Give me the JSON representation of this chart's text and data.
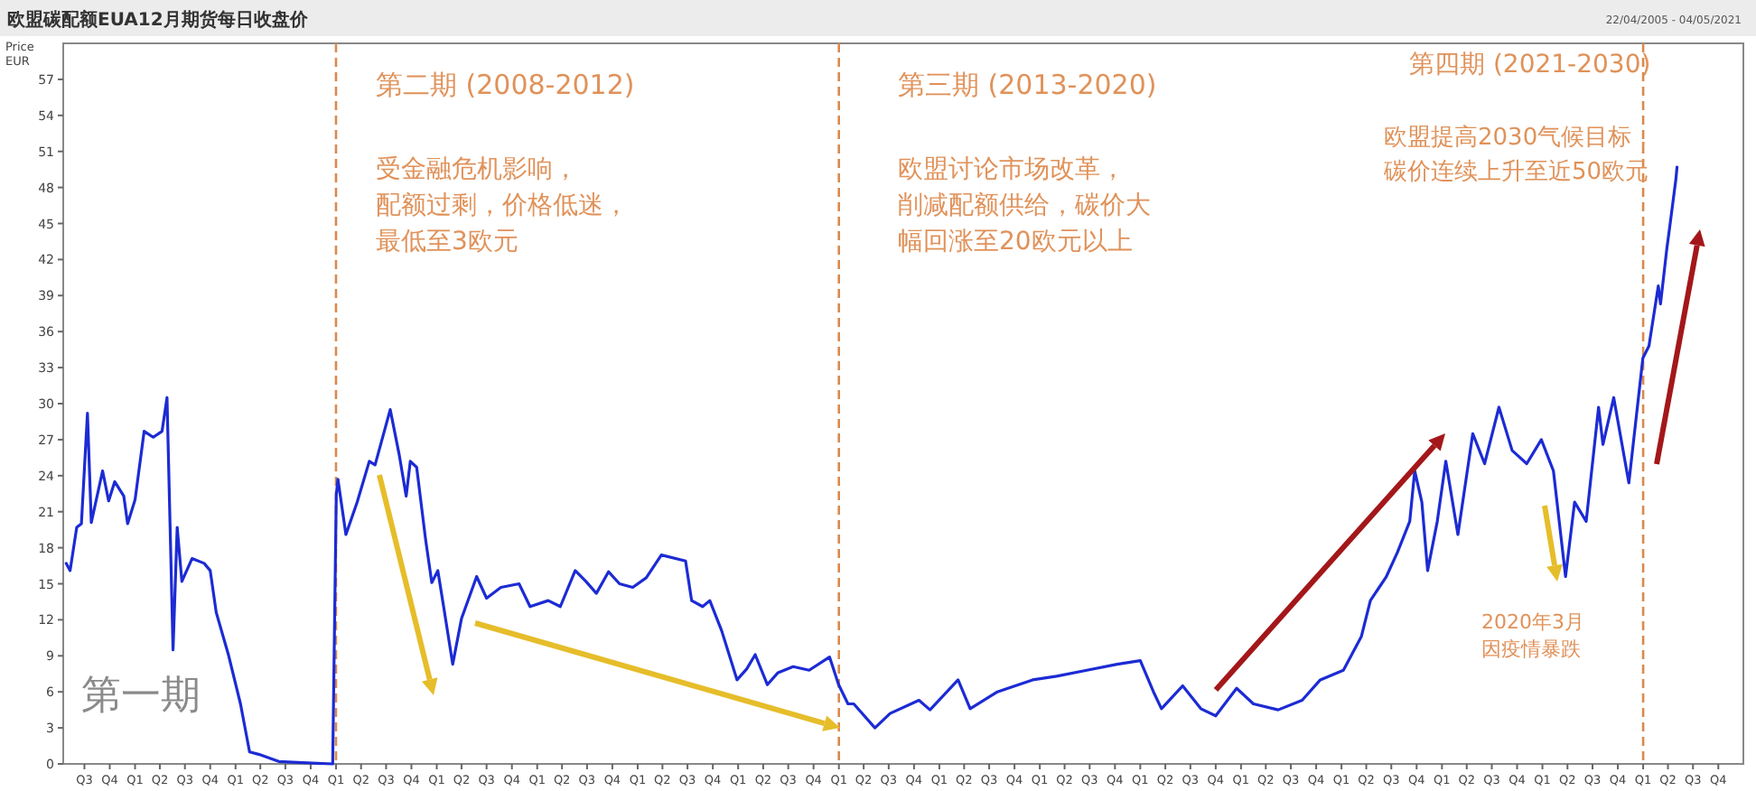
{
  "chart_data": {
    "type": "line",
    "title": "欧盟碳配额EUA12月期货每日收盘价",
    "subtitle": "22/04/2005 - 04/05/2021",
    "ylabel": "Price EUR",
    "annotations": [
      "第一期",
      "第二期 (2008-2012)",
      "受金融危机影响，",
      "配额过剩，价格低迷，",
      "最低至3欧元",
      "第三期 (2013-2020)",
      "欧盟讨论市场改革，",
      "削减配额供给，碳价大",
      "幅回涨至20欧元以上",
      "第四期 (2021-2030)",
      "欧盟提高2030气候目标，",
      "碳价连续上升至近50欧元",
      "2020年3月",
      "因疫情暴跌"
    ],
    "series": [
      {
        "color": "#1c2bd4",
        "x": [
          "2005-04-26",
          "2005-05-10",
          "2005-06-03",
          "2005-06-20",
          "2005-07-12",
          "2005-07-26",
          "2005-09-05",
          "2005-09-27",
          "2005-10-19",
          "2005-11-21",
          "2005-12-05",
          "2006-01-01",
          "2006-02-03",
          "2006-03-08",
          "2006-04-09",
          "2006-04-27",
          "2006-05-08",
          "2006-05-19",
          "2006-06-03",
          "2006-06-20",
          "2006-07-27",
          "2006-09-09",
          "2006-10-01",
          "2006-10-23",
          "2006-12-06",
          "2007-01-19",
          "2007-02-21",
          "2007-03-26",
          "2007-06-07",
          "2007-09-02",
          "2007-12-20",
          "2008-01-02",
          "2008-01-08",
          "2008-02-06",
          "2008-03-18",
          "2008-05-01",
          "2008-05-22",
          "2008-07-16",
          "2008-08-18",
          "2008-09-12",
          "2008-09-27",
          "2008-10-20",
          "2008-11-22",
          "2008-12-14",
          "2009-01-05",
          "2009-01-26",
          "2009-02-28",
          "2009-04-01",
          "2009-05-26",
          "2009-07-01",
          "2009-08-22",
          "2009-10-27",
          "2009-12-06",
          "2010-02-10",
          "2010-03-26",
          "2010-05-19",
          "2010-06-27",
          "2010-08-04",
          "2010-09-17",
          "2010-10-27",
          "2010-12-14",
          "2011-02-01",
          "2011-03-28",
          "2011-06-24",
          "2011-07-16",
          "2011-08-25",
          "2011-09-20",
          "2011-11-02",
          "2011-12-28",
          "2012-02-01",
          "2012-03-03",
          "2012-04-16",
          "2012-05-25",
          "2012-07-19",
          "2012-09-15",
          "2012-11-28",
          "2012-12-31",
          "2013-02-03",
          "2013-02-24",
          "2013-05-12",
          "2013-07-06",
          "2013-10-19",
          "2013-11-28",
          "2014-03-10",
          "2014-04-23",
          "2014-07-31",
          "2014-12-06",
          "2015-03-03",
          "2015-06-21",
          "2015-10-09",
          "2016-01-01",
          "2016-02-18",
          "2016-03-18",
          "2016-06-03",
          "2016-08-08",
          "2016-10-01",
          "2016-12-16",
          "2017-02-15",
          "2017-05-16",
          "2017-08-11",
          "2017-10-16",
          "2018-01-08",
          "2018-03-14",
          "2018-04-16",
          "2018-06-13",
          "2018-07-23",
          "2018-09-06",
          "2018-09-24",
          "2018-10-20",
          "2018-11-10",
          "2018-12-15",
          "2019-01-15",
          "2019-02-28",
          "2019-04-23",
          "2019-06-05",
          "2019-07-27",
          "2019-09-13",
          "2019-11-05",
          "2019-12-28",
          "2020-02-10",
          "2020-03-25",
          "2020-04-27",
          "2020-06-08",
          "2020-07-23",
          "2020-08-08",
          "2020-09-16",
          "2020-11-10",
          "2020-12-31",
          "2021-01-22",
          "2021-02-25",
          "2021-03-05",
          "2021-03-28",
          "2021-04-08",
          "2021-04-30",
          "2021-05-04"
        ],
        "values": [
          16.7,
          16.1,
          19.7,
          20,
          29.2,
          20.1,
          24.4,
          21.9,
          23.5,
          22.3,
          20,
          22,
          27.7,
          27.2,
          27.7,
          30.5,
          20,
          9.5,
          19.7,
          15.2,
          17.1,
          16.7,
          16.1,
          12.6,
          9.1,
          5,
          1,
          0.8,
          0.2,
          0.1,
          0,
          22.4,
          23.7,
          19.1,
          21.8,
          25.2,
          24.9,
          29.5,
          25.7,
          22.3,
          25.2,
          24.7,
          18.6,
          15.1,
          16.1,
          13.1,
          8.3,
          12.1,
          15.6,
          13.8,
          14.7,
          15,
          13.1,
          13.6,
          13.1,
          16.1,
          15.2,
          14.2,
          16,
          15,
          14.7,
          15.5,
          17.4,
          16.9,
          13.6,
          13.1,
          13.6,
          11.1,
          7,
          7.9,
          9.1,
          6.6,
          7.6,
          8.1,
          7.8,
          8.9,
          6.6,
          5,
          5,
          3,
          4.2,
          5.3,
          4.5,
          7,
          4.6,
          6,
          7,
          7.3,
          7.8,
          8.3,
          8.6,
          6,
          4.6,
          6.5,
          4.6,
          4,
          6.3,
          5,
          4.5,
          5.3,
          7,
          7.8,
          10.6,
          13.6,
          15.6,
          17.6,
          20.2,
          24.4,
          21.8,
          16.1,
          20.2,
          25.2,
          19.1,
          27.5,
          25,
          29.7,
          26.1,
          25,
          27,
          24.4,
          15.6,
          21.8,
          20.2,
          29.7,
          26.6,
          30.5,
          23.4,
          33.8,
          34.8,
          39.8,
          38.3,
          42.9,
          44.8,
          48.7,
          49.7
        ]
      }
    ],
    "xlim": [
      "2005-04-15",
      "2021-12-31"
    ],
    "ylim": [
      0,
      60
    ],
    "yticks": [
      0,
      3,
      6,
      9,
      12,
      15,
      18,
      21,
      24,
      27,
      30,
      33,
      36,
      39,
      42,
      45,
      48,
      51,
      54,
      57
    ],
    "xticks": [
      {
        "value": "2005-07-01",
        "label": "Q3"
      },
      {
        "value": "2005-10-01",
        "label": "Q4"
      },
      {
        "value": "2006-01-01",
        "label": "Q1"
      },
      {
        "value": "2006-04-01",
        "label": "Q2"
      },
      {
        "value": "2006-07-01",
        "label": "Q3"
      },
      {
        "value": "2006-10-01",
        "label": "Q4"
      },
      {
        "value": "2007-01-01",
        "label": "Q1"
      },
      {
        "value": "2007-04-01",
        "label": "Q2"
      },
      {
        "value": "2007-07-01",
        "label": "Q3"
      },
      {
        "value": "2007-10-01",
        "label": "Q4"
      },
      {
        "value": "2008-01-01",
        "label": "Q1"
      },
      {
        "value": "2008-04-01",
        "label": "Q2"
      },
      {
        "value": "2008-07-01",
        "label": "Q3"
      },
      {
        "value": "2008-10-01",
        "label": "Q4"
      },
      {
        "value": "2009-01-01",
        "label": "Q1"
      },
      {
        "value": "2009-04-01",
        "label": "Q2"
      },
      {
        "value": "2009-07-01",
        "label": "Q3"
      },
      {
        "value": "2009-10-01",
        "label": "Q4"
      },
      {
        "value": "2010-01-01",
        "label": "Q1"
      },
      {
        "value": "2010-04-01",
        "label": "Q2"
      },
      {
        "value": "2010-07-01",
        "label": "Q3"
      },
      {
        "value": "2010-10-01",
        "label": "Q4"
      },
      {
        "value": "2011-01-01",
        "label": "Q1"
      },
      {
        "value": "2011-04-01",
        "label": "Q2"
      },
      {
        "value": "2011-07-01",
        "label": "Q3"
      },
      {
        "value": "2011-10-01",
        "label": "Q4"
      },
      {
        "value": "2012-01-01",
        "label": "Q1"
      },
      {
        "value": "2012-04-01",
        "label": "Q2"
      },
      {
        "value": "2012-07-01",
        "label": "Q3"
      },
      {
        "value": "2012-10-01",
        "label": "Q4"
      },
      {
        "value": "2013-01-01",
        "label": "Q1"
      },
      {
        "value": "2013-04-01",
        "label": "Q2"
      },
      {
        "value": "2013-07-01",
        "label": "Q3"
      },
      {
        "value": "2013-10-01",
        "label": "Q4"
      },
      {
        "value": "2014-01-01",
        "label": "Q1"
      },
      {
        "value": "2014-04-01",
        "label": "Q2"
      },
      {
        "value": "2014-07-01",
        "label": "Q3"
      },
      {
        "value": "2014-10-01",
        "label": "Q4"
      },
      {
        "value": "2015-01-01",
        "label": "Q1"
      },
      {
        "value": "2015-04-01",
        "label": "Q2"
      },
      {
        "value": "2015-07-01",
        "label": "Q3"
      },
      {
        "value": "2015-10-01",
        "label": "Q4"
      },
      {
        "value": "2016-01-01",
        "label": "Q1"
      },
      {
        "value": "2016-04-01",
        "label": "Q2"
      },
      {
        "value": "2016-07-01",
        "label": "Q3"
      },
      {
        "value": "2016-10-01",
        "label": "Q4"
      },
      {
        "value": "2017-01-01",
        "label": "Q1"
      },
      {
        "value": "2017-04-01",
        "label": "Q2"
      },
      {
        "value": "2017-07-01",
        "label": "Q3"
      },
      {
        "value": "2017-10-01",
        "label": "Q4"
      },
      {
        "value": "2018-01-01",
        "label": "Q1"
      },
      {
        "value": "2018-04-01",
        "label": "Q2"
      },
      {
        "value": "2018-07-01",
        "label": "Q3"
      },
      {
        "value": "2018-10-01",
        "label": "Q4"
      },
      {
        "value": "2019-01-01",
        "label": "Q1"
      },
      {
        "value": "2019-04-01",
        "label": "Q2"
      },
      {
        "value": "2019-07-01",
        "label": "Q3"
      },
      {
        "value": "2019-10-01",
        "label": "Q4"
      },
      {
        "value": "2020-01-01",
        "label": "Q1"
      },
      {
        "value": "2020-04-01",
        "label": "Q2"
      },
      {
        "value": "2020-07-01",
        "label": "Q3"
      },
      {
        "value": "2020-10-01",
        "label": "Q4"
      },
      {
        "value": "2021-01-01",
        "label": "Q1"
      },
      {
        "value": "2021-04-01",
        "label": "Q2"
      },
      {
        "value": "2021-07-01",
        "label": "Q3"
      },
      {
        "value": "2021-10-01",
        "label": "Q4"
      }
    ],
    "ref_lines": [
      {
        "axis": "x",
        "value": "2008-01-01",
        "color": "#d98a4e",
        "line_style": "dashed"
      },
      {
        "axis": "x",
        "value": "2013-01-01",
        "color": "#d98a4e",
        "line_style": "dashed"
      },
      {
        "axis": "x",
        "value": "2021-01-01",
        "color": "#d98a4e",
        "line_style": "dashed"
      }
    ],
    "grid": false,
    "marker": "none",
    "line_style": "solid"
  }
}
